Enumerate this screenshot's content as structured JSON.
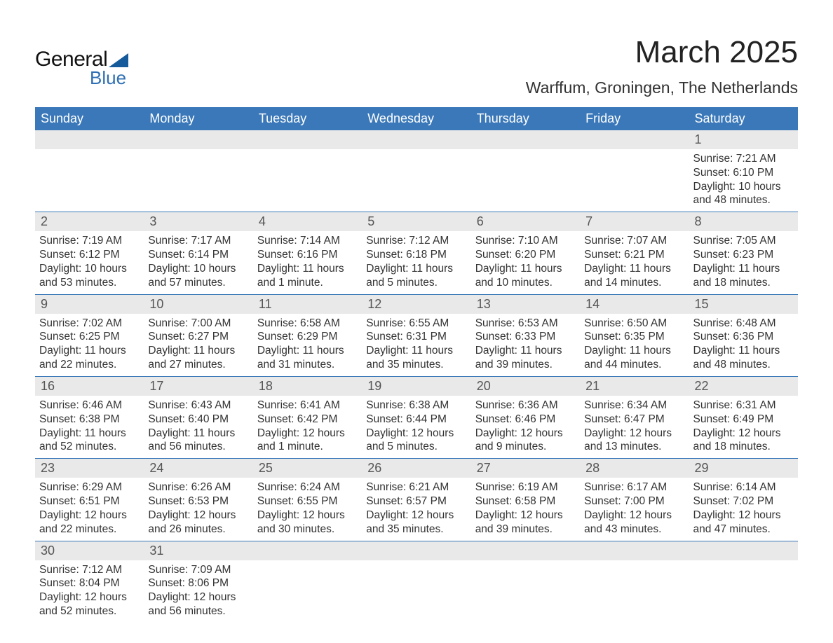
{
  "colors": {
    "header_bg": "#3a78b9",
    "header_text": "#ffffff",
    "daynum_bg": "#e9e9e9",
    "daynum_text": "#555555",
    "body_text": "#333333",
    "row_separator": "#3a78b9",
    "logo_blue": "#2f6fb3",
    "logo_shape": "#155a9a",
    "page_bg": "#ffffff"
  },
  "typography": {
    "month_title_fontsize": 44,
    "location_fontsize": 23,
    "dayhead_fontsize": 18,
    "daynum_fontsize": 18,
    "body_fontsize": 15.5,
    "font_family": "Arial"
  },
  "logo": {
    "text_top": "General",
    "text_bottom": "Blue"
  },
  "title": "March 2025",
  "location": "Warffum, Groningen, The Netherlands",
  "day_headers": [
    "Sunday",
    "Monday",
    "Tuesday",
    "Wednesday",
    "Thursday",
    "Friday",
    "Saturday"
  ],
  "weeks": [
    [
      {
        "blank": true
      },
      {
        "blank": true
      },
      {
        "blank": true
      },
      {
        "blank": true
      },
      {
        "blank": true
      },
      {
        "blank": true
      },
      {
        "day": "1",
        "sunrise": "Sunrise: 7:21 AM",
        "sunset": "Sunset: 6:10 PM",
        "daylight1": "Daylight: 10 hours",
        "daylight2": "and 48 minutes."
      }
    ],
    [
      {
        "day": "2",
        "sunrise": "Sunrise: 7:19 AM",
        "sunset": "Sunset: 6:12 PM",
        "daylight1": "Daylight: 10 hours",
        "daylight2": "and 53 minutes."
      },
      {
        "day": "3",
        "sunrise": "Sunrise: 7:17 AM",
        "sunset": "Sunset: 6:14 PM",
        "daylight1": "Daylight: 10 hours",
        "daylight2": "and 57 minutes."
      },
      {
        "day": "4",
        "sunrise": "Sunrise: 7:14 AM",
        "sunset": "Sunset: 6:16 PM",
        "daylight1": "Daylight: 11 hours",
        "daylight2": "and 1 minute."
      },
      {
        "day": "5",
        "sunrise": "Sunrise: 7:12 AM",
        "sunset": "Sunset: 6:18 PM",
        "daylight1": "Daylight: 11 hours",
        "daylight2": "and 5 minutes."
      },
      {
        "day": "6",
        "sunrise": "Sunrise: 7:10 AM",
        "sunset": "Sunset: 6:20 PM",
        "daylight1": "Daylight: 11 hours",
        "daylight2": "and 10 minutes."
      },
      {
        "day": "7",
        "sunrise": "Sunrise: 7:07 AM",
        "sunset": "Sunset: 6:21 PM",
        "daylight1": "Daylight: 11 hours",
        "daylight2": "and 14 minutes."
      },
      {
        "day": "8",
        "sunrise": "Sunrise: 7:05 AM",
        "sunset": "Sunset: 6:23 PM",
        "daylight1": "Daylight: 11 hours",
        "daylight2": "and 18 minutes."
      }
    ],
    [
      {
        "day": "9",
        "sunrise": "Sunrise: 7:02 AM",
        "sunset": "Sunset: 6:25 PM",
        "daylight1": "Daylight: 11 hours",
        "daylight2": "and 22 minutes."
      },
      {
        "day": "10",
        "sunrise": "Sunrise: 7:00 AM",
        "sunset": "Sunset: 6:27 PM",
        "daylight1": "Daylight: 11 hours",
        "daylight2": "and 27 minutes."
      },
      {
        "day": "11",
        "sunrise": "Sunrise: 6:58 AM",
        "sunset": "Sunset: 6:29 PM",
        "daylight1": "Daylight: 11 hours",
        "daylight2": "and 31 minutes."
      },
      {
        "day": "12",
        "sunrise": "Sunrise: 6:55 AM",
        "sunset": "Sunset: 6:31 PM",
        "daylight1": "Daylight: 11 hours",
        "daylight2": "and 35 minutes."
      },
      {
        "day": "13",
        "sunrise": "Sunrise: 6:53 AM",
        "sunset": "Sunset: 6:33 PM",
        "daylight1": "Daylight: 11 hours",
        "daylight2": "and 39 minutes."
      },
      {
        "day": "14",
        "sunrise": "Sunrise: 6:50 AM",
        "sunset": "Sunset: 6:35 PM",
        "daylight1": "Daylight: 11 hours",
        "daylight2": "and 44 minutes."
      },
      {
        "day": "15",
        "sunrise": "Sunrise: 6:48 AM",
        "sunset": "Sunset: 6:36 PM",
        "daylight1": "Daylight: 11 hours",
        "daylight2": "and 48 minutes."
      }
    ],
    [
      {
        "day": "16",
        "sunrise": "Sunrise: 6:46 AM",
        "sunset": "Sunset: 6:38 PM",
        "daylight1": "Daylight: 11 hours",
        "daylight2": "and 52 minutes."
      },
      {
        "day": "17",
        "sunrise": "Sunrise: 6:43 AM",
        "sunset": "Sunset: 6:40 PM",
        "daylight1": "Daylight: 11 hours",
        "daylight2": "and 56 minutes."
      },
      {
        "day": "18",
        "sunrise": "Sunrise: 6:41 AM",
        "sunset": "Sunset: 6:42 PM",
        "daylight1": "Daylight: 12 hours",
        "daylight2": "and 1 minute."
      },
      {
        "day": "19",
        "sunrise": "Sunrise: 6:38 AM",
        "sunset": "Sunset: 6:44 PM",
        "daylight1": "Daylight: 12 hours",
        "daylight2": "and 5 minutes."
      },
      {
        "day": "20",
        "sunrise": "Sunrise: 6:36 AM",
        "sunset": "Sunset: 6:46 PM",
        "daylight1": "Daylight: 12 hours",
        "daylight2": "and 9 minutes."
      },
      {
        "day": "21",
        "sunrise": "Sunrise: 6:34 AM",
        "sunset": "Sunset: 6:47 PM",
        "daylight1": "Daylight: 12 hours",
        "daylight2": "and 13 minutes."
      },
      {
        "day": "22",
        "sunrise": "Sunrise: 6:31 AM",
        "sunset": "Sunset: 6:49 PM",
        "daylight1": "Daylight: 12 hours",
        "daylight2": "and 18 minutes."
      }
    ],
    [
      {
        "day": "23",
        "sunrise": "Sunrise: 6:29 AM",
        "sunset": "Sunset: 6:51 PM",
        "daylight1": "Daylight: 12 hours",
        "daylight2": "and 22 minutes."
      },
      {
        "day": "24",
        "sunrise": "Sunrise: 6:26 AM",
        "sunset": "Sunset: 6:53 PM",
        "daylight1": "Daylight: 12 hours",
        "daylight2": "and 26 minutes."
      },
      {
        "day": "25",
        "sunrise": "Sunrise: 6:24 AM",
        "sunset": "Sunset: 6:55 PM",
        "daylight1": "Daylight: 12 hours",
        "daylight2": "and 30 minutes."
      },
      {
        "day": "26",
        "sunrise": "Sunrise: 6:21 AM",
        "sunset": "Sunset: 6:57 PM",
        "daylight1": "Daylight: 12 hours",
        "daylight2": "and 35 minutes."
      },
      {
        "day": "27",
        "sunrise": "Sunrise: 6:19 AM",
        "sunset": "Sunset: 6:58 PM",
        "daylight1": "Daylight: 12 hours",
        "daylight2": "and 39 minutes."
      },
      {
        "day": "28",
        "sunrise": "Sunrise: 6:17 AM",
        "sunset": "Sunset: 7:00 PM",
        "daylight1": "Daylight: 12 hours",
        "daylight2": "and 43 minutes."
      },
      {
        "day": "29",
        "sunrise": "Sunrise: 6:14 AM",
        "sunset": "Sunset: 7:02 PM",
        "daylight1": "Daylight: 12 hours",
        "daylight2": "and 47 minutes."
      }
    ],
    [
      {
        "day": "30",
        "sunrise": "Sunrise: 7:12 AM",
        "sunset": "Sunset: 8:04 PM",
        "daylight1": "Daylight: 12 hours",
        "daylight2": "and 52 minutes."
      },
      {
        "day": "31",
        "sunrise": "Sunrise: 7:09 AM",
        "sunset": "Sunset: 8:06 PM",
        "daylight1": "Daylight: 12 hours",
        "daylight2": "and 56 minutes."
      },
      {
        "blank": true
      },
      {
        "blank": true
      },
      {
        "blank": true
      },
      {
        "blank": true
      },
      {
        "blank": true
      }
    ]
  ]
}
